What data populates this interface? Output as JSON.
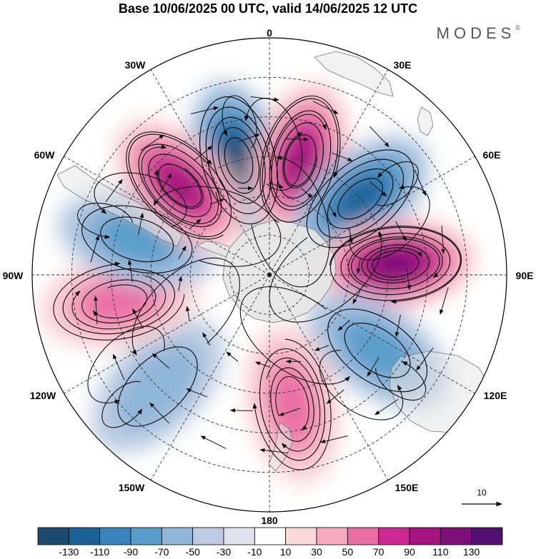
{
  "title": "Base 10/06/2025 00 UTC, valid 14/06/2025 12 UTC",
  "brand": "MODES",
  "brand_mark": "©",
  "longitude_labels": {
    "lon_0": "0",
    "lon_30e": "30E",
    "lon_60e": "60E",
    "lon_90e": "90E",
    "lon_120e": "120E",
    "lon_150e": "150E",
    "lon_180": "180",
    "lon_150w": "150W",
    "lon_120w": "120W",
    "lon_90w": "90W",
    "lon_60w": "60W",
    "lon_30w": "30W"
  },
  "vector_reference": {
    "label": "10"
  },
  "colorbar": {
    "ticks": [
      "-130",
      "-110",
      "-90",
      "-70",
      "-50",
      "-30",
      "-10",
      "10",
      "30",
      "50",
      "70",
      "90",
      "110",
      "130"
    ],
    "colors": [
      "#1d4b6d",
      "#1b6198",
      "#3b84bb",
      "#5a9dcb",
      "#8fb6d9",
      "#bccbe2",
      "#e2e2ef",
      "#ffffff",
      "#fad9d9",
      "#f4aac0",
      "#ea6fa5",
      "#cc2a92",
      "#a4157f",
      "#7c0f7a",
      "#521070"
    ]
  },
  "chart_data": {
    "type": "heatmap",
    "projection": "polar stereographic, south pole centred",
    "field": "anomaly with overlaid wind streamlines",
    "value_range": [
      -130,
      130
    ],
    "anomaly_centres": [
      {
        "lon": -15,
        "lat": -45,
        "value": -130
      },
      {
        "lon": 15,
        "lat": -45,
        "value": 120
      },
      {
        "lon": 50,
        "lat": -45,
        "value": -120
      },
      {
        "lon": 85,
        "lat": -42,
        "value": 130
      },
      {
        "lon": 125,
        "lat": -40,
        "value": -70
      },
      {
        "lon": 170,
        "lat": -40,
        "value": 70
      },
      {
        "lon": -135,
        "lat": -30,
        "value": -60
      },
      {
        "lon": -100,
        "lat": -32,
        "value": 70
      },
      {
        "lon": -75,
        "lat": -38,
        "value": -70
      },
      {
        "lon": -45,
        "lat": -42,
        "value": 110
      }
    ]
  }
}
